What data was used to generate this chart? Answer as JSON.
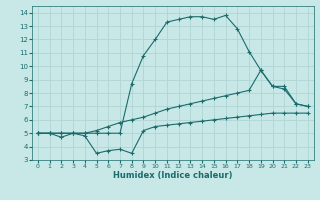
{
  "xlabel": "Humidex (Indice chaleur)",
  "xlim": [
    -0.5,
    23.5
  ],
  "ylim": [
    3,
    14.5
  ],
  "xticks": [
    0,
    1,
    2,
    3,
    4,
    5,
    6,
    7,
    8,
    9,
    10,
    11,
    12,
    13,
    14,
    15,
    16,
    17,
    18,
    19,
    20,
    21,
    22,
    23
  ],
  "yticks": [
    3,
    4,
    5,
    6,
    7,
    8,
    9,
    10,
    11,
    12,
    13,
    14
  ],
  "bg_color": "#c8e8e8",
  "grid_color": "#b0d4d4",
  "line_color": "#1a6b6b",
  "curve_max_x": [
    0,
    1,
    2,
    3,
    4,
    5,
    6,
    7,
    8,
    9,
    10,
    11,
    12,
    13,
    14,
    15,
    16,
    17,
    18,
    19,
    20,
    21,
    22,
    23
  ],
  "curve_max_y": [
    5.0,
    5.0,
    5.0,
    5.0,
    5.0,
    5.0,
    5.0,
    5.0,
    8.7,
    10.8,
    12.0,
    13.3,
    13.5,
    13.7,
    13.7,
    13.5,
    13.8,
    12.8,
    11.1,
    9.7,
    8.5,
    8.5,
    7.2,
    7.0
  ],
  "curve_mid_x": [
    0,
    1,
    2,
    3,
    4,
    5,
    6,
    7,
    8,
    9,
    10,
    11,
    12,
    13,
    14,
    15,
    16,
    17,
    18,
    19,
    20,
    21,
    22,
    23
  ],
  "curve_mid_y": [
    5.0,
    5.0,
    5.0,
    5.0,
    5.0,
    5.2,
    5.5,
    5.8,
    6.0,
    6.2,
    6.5,
    6.8,
    7.0,
    7.2,
    7.4,
    7.6,
    7.8,
    8.0,
    8.2,
    9.7,
    8.5,
    8.3,
    7.2,
    7.0
  ],
  "curve_bot_x": [
    0,
    1,
    2,
    3,
    4,
    5,
    6,
    7,
    8,
    9,
    10,
    11,
    12,
    13,
    14,
    15,
    16,
    17,
    18,
    19,
    20,
    21,
    22,
    23
  ],
  "curve_bot_y": [
    5.0,
    5.0,
    4.7,
    5.0,
    4.8,
    3.5,
    3.7,
    3.8,
    3.5,
    5.2,
    5.5,
    5.6,
    5.7,
    5.8,
    5.9,
    6.0,
    6.1,
    6.2,
    6.3,
    6.4,
    6.5,
    6.5,
    6.5,
    6.5
  ]
}
